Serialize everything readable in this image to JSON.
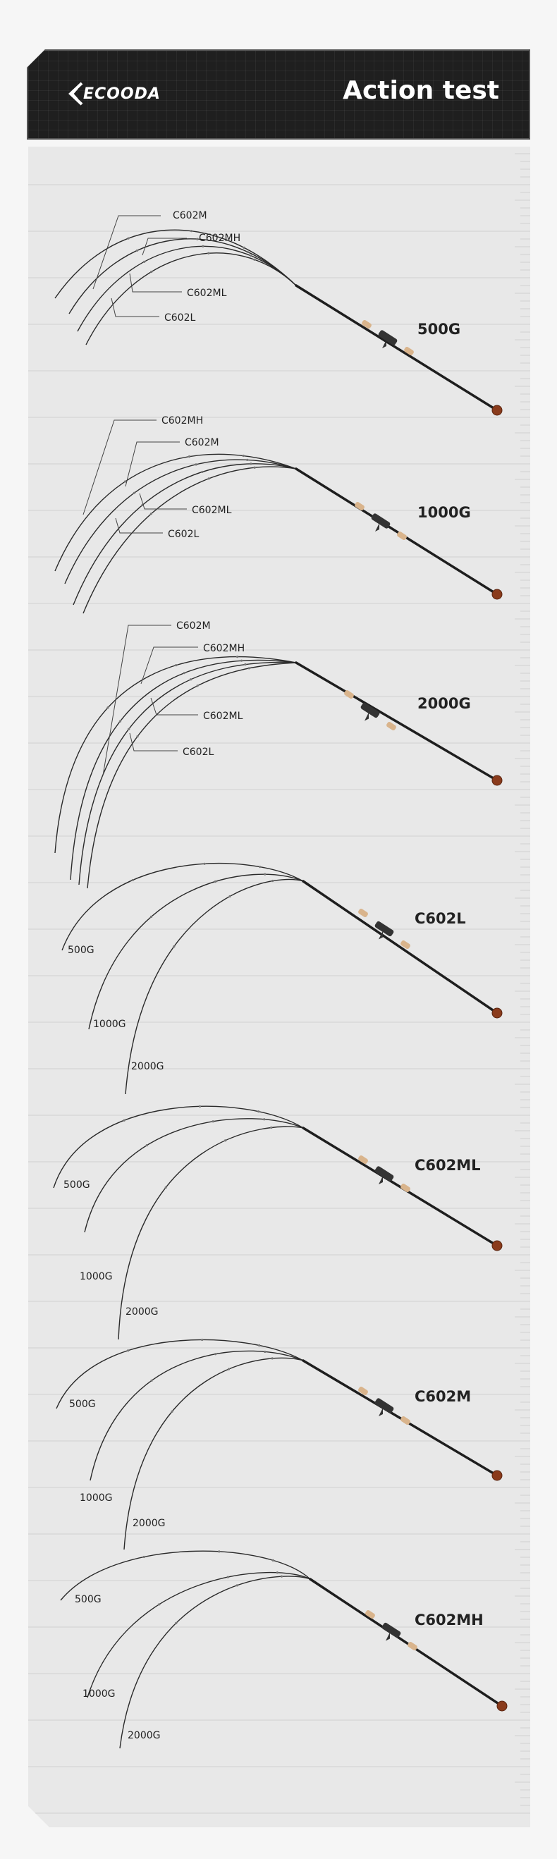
{
  "header": {
    "brand": "ECOODA",
    "title": "Action test"
  },
  "icons": [
    "ecooda-logo-icon",
    "fishing-rod-icon"
  ],
  "colors": {
    "header_bg": "#1f1f1f",
    "board_bg": "#e8e8e8",
    "rod": "#2a2a2a",
    "cork": "#d9b48c",
    "butt_cap": "#8a3b1c"
  },
  "panels": [
    {
      "title": "500G",
      "type": "by_weight",
      "curves": [
        {
          "label": "C602M"
        },
        {
          "label": "C602MH"
        },
        {
          "label": "C602ML"
        },
        {
          "label": "C602L"
        }
      ]
    },
    {
      "title": "1000G",
      "type": "by_weight",
      "curves": [
        {
          "label": "C602MH"
        },
        {
          "label": "C602M"
        },
        {
          "label": "C602ML"
        },
        {
          "label": "C602L"
        }
      ]
    },
    {
      "title": "2000G",
      "type": "by_weight",
      "curves": [
        {
          "label": "C602M"
        },
        {
          "label": "C602MH"
        },
        {
          "label": "C602ML"
        },
        {
          "label": "C602L"
        }
      ]
    },
    {
      "title": "C602L",
      "type": "by_model",
      "curves": [
        {
          "label": "500G"
        },
        {
          "label": "1000G"
        },
        {
          "label": "2000G"
        }
      ]
    },
    {
      "title": "C602ML",
      "type": "by_model",
      "curves": [
        {
          "label": "500G"
        },
        {
          "label": "1000G"
        },
        {
          "label": "2000G"
        }
      ]
    },
    {
      "title": "C602M",
      "type": "by_model",
      "curves": [
        {
          "label": "500G"
        },
        {
          "label": "1000G"
        },
        {
          "label": "2000G"
        }
      ]
    },
    {
      "title": "C602MH",
      "type": "by_model",
      "curves": [
        {
          "label": "500G"
        },
        {
          "label": "1000G"
        },
        {
          "label": "2000G"
        }
      ]
    }
  ]
}
